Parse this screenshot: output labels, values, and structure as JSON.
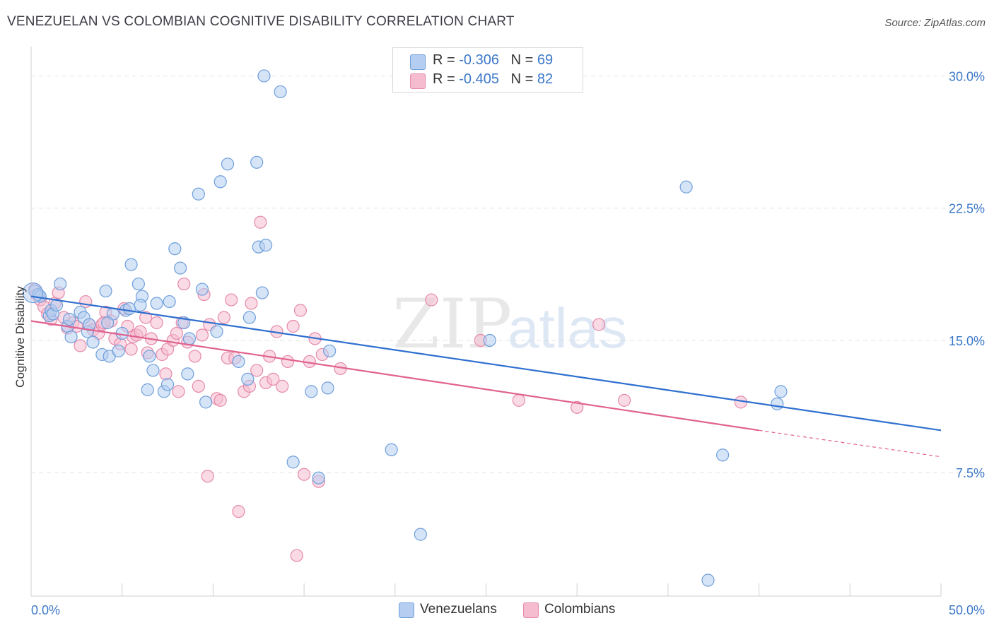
{
  "title": "VENEZUELAN VS COLOMBIAN COGNITIVE DISABILITY CORRELATION CHART",
  "source": "Source: ZipAtlas.com",
  "legend": {
    "rows": [
      {
        "r_label": "R =",
        "r_value": "-0.306",
        "n_label": "N =",
        "n_value": "69"
      },
      {
        "r_label": "R =",
        "r_value": "-0.405",
        "n_label": "N =",
        "n_value": "82"
      }
    ]
  },
  "bottom_legend": [
    "Venezuelans",
    "Colombians"
  ],
  "colors": {
    "venezuelans_fill": "#b4cdf0",
    "venezuelans_stroke": "#6e9fdc",
    "venezuelans_line": "#2f6fcf",
    "colombians_fill": "#f5bcd0",
    "colombians_stroke": "#e58aab",
    "colombians_line": "#e0628f",
    "tick_text": "#3c78c8",
    "grid": "#e3e3e3"
  },
  "chart_data": {
    "type": "scatter",
    "ylabel": "Cognitive Disability",
    "xlim": [
      0,
      50
    ],
    "ylim": [
      0.5,
      31.5
    ],
    "x_tick_labels": [
      "0.0%",
      "50.0%"
    ],
    "y_ticks": [
      7.5,
      15.0,
      22.5,
      30.0
    ],
    "y_tick_labels": [
      "7.5%",
      "15.0%",
      "22.5%",
      "30.0%"
    ],
    "grid": true,
    "watermark": [
      "ZIP",
      "atlas"
    ],
    "series": [
      {
        "name": "Venezuelans",
        "trend": {
          "x0": 0,
          "y0": 17.5,
          "x1": 50,
          "y1": 9.9
        },
        "points": [
          [
            0.2,
            17.8
          ],
          [
            0.4,
            17.6
          ],
          [
            0.5,
            17.5
          ],
          [
            1.0,
            16.4
          ],
          [
            1.1,
            16.7
          ],
          [
            1.2,
            16.5
          ],
          [
            1.4,
            17.0
          ],
          [
            1.6,
            18.2
          ],
          [
            2.0,
            15.8
          ],
          [
            2.1,
            16.2
          ],
          [
            2.2,
            15.2
          ],
          [
            2.7,
            16.6
          ],
          [
            2.9,
            16.3
          ],
          [
            3.1,
            15.5
          ],
          [
            3.4,
            14.9
          ],
          [
            3.2,
            15.9
          ],
          [
            3.9,
            14.2
          ],
          [
            4.1,
            17.8
          ],
          [
            4.3,
            14.1
          ],
          [
            4.5,
            16.5
          ],
          [
            4.2,
            16.0
          ],
          [
            4.8,
            14.4
          ],
          [
            5.0,
            15.4
          ],
          [
            5.2,
            16.7
          ],
          [
            5.4,
            16.8
          ],
          [
            5.5,
            19.3
          ],
          [
            5.9,
            18.2
          ],
          [
            6.1,
            17.5
          ],
          [
            6.0,
            17.0
          ],
          [
            6.4,
            12.2
          ],
          [
            6.5,
            14.1
          ],
          [
            6.7,
            13.3
          ],
          [
            6.9,
            17.1
          ],
          [
            7.3,
            12.1
          ],
          [
            7.5,
            12.5
          ],
          [
            7.6,
            17.2
          ],
          [
            7.9,
            20.2
          ],
          [
            8.2,
            19.1
          ],
          [
            8.4,
            16.0
          ],
          [
            8.6,
            13.1
          ],
          [
            8.7,
            15.1
          ],
          [
            9.2,
            23.3
          ],
          [
            9.4,
            17.9
          ],
          [
            9.6,
            11.5
          ],
          [
            10.2,
            15.5
          ],
          [
            10.4,
            24.0
          ],
          [
            10.8,
            25.0
          ],
          [
            11.4,
            13.8
          ],
          [
            11.9,
            12.8
          ],
          [
            12.0,
            16.3
          ],
          [
            12.4,
            25.1
          ],
          [
            12.5,
            20.3
          ],
          [
            12.7,
            17.7
          ],
          [
            12.9,
            20.4
          ],
          [
            12.8,
            30.0
          ],
          [
            13.7,
            29.1
          ],
          [
            14.4,
            8.1
          ],
          [
            15.4,
            12.1
          ],
          [
            15.8,
            7.2
          ],
          [
            16.3,
            12.3
          ],
          [
            16.4,
            14.4
          ],
          [
            19.8,
            8.8
          ],
          [
            21.4,
            4.0
          ],
          [
            25.2,
            15.0
          ],
          [
            36.0,
            23.7
          ],
          [
            38.0,
            8.5
          ],
          [
            37.2,
            1.4
          ],
          [
            41.0,
            11.4
          ],
          [
            41.2,
            12.1
          ]
        ]
      },
      {
        "name": "Colombians",
        "trend": {
          "x0": 0,
          "y0": 16.1,
          "x1": 40,
          "y1": 9.9
        },
        "trend_dashed": {
          "x0": 40,
          "y0": 9.9,
          "x1": 50,
          "y1": 8.4
        },
        "points": [
          [
            0.2,
            17.9
          ],
          [
            0.3,
            17.6
          ],
          [
            0.5,
            17.3
          ],
          [
            0.7,
            16.9
          ],
          [
            0.9,
            16.5
          ],
          [
            1.1,
            16.2
          ],
          [
            1.3,
            17.1
          ],
          [
            1.5,
            17.7
          ],
          [
            1.8,
            16.3
          ],
          [
            2.0,
            15.7
          ],
          [
            2.3,
            16.0
          ],
          [
            2.5,
            15.8
          ],
          [
            2.7,
            14.7
          ],
          [
            3.0,
            17.2
          ],
          [
            3.2,
            15.9
          ],
          [
            3.4,
            15.6
          ],
          [
            3.7,
            15.4
          ],
          [
            3.9,
            15.9
          ],
          [
            4.1,
            16.6
          ],
          [
            4.4,
            16.1
          ],
          [
            4.6,
            15.1
          ],
          [
            4.9,
            14.8
          ],
          [
            5.1,
            16.8
          ],
          [
            5.3,
            15.8
          ],
          [
            5.5,
            14.5
          ],
          [
            5.6,
            15.2
          ],
          [
            5.8,
            15.3
          ],
          [
            6.0,
            15.5
          ],
          [
            6.3,
            16.3
          ],
          [
            6.4,
            14.3
          ],
          [
            6.6,
            15.1
          ],
          [
            6.9,
            16.0
          ],
          [
            7.2,
            14.2
          ],
          [
            7.4,
            13.1
          ],
          [
            7.5,
            14.5
          ],
          [
            7.8,
            15.0
          ],
          [
            8.0,
            15.4
          ],
          [
            8.1,
            12.1
          ],
          [
            8.3,
            16.0
          ],
          [
            8.4,
            18.2
          ],
          [
            8.6,
            14.9
          ],
          [
            9.0,
            14.1
          ],
          [
            9.2,
            12.4
          ],
          [
            9.5,
            17.6
          ],
          [
            9.7,
            7.3
          ],
          [
            9.8,
            15.9
          ],
          [
            10.2,
            11.7
          ],
          [
            10.4,
            11.6
          ],
          [
            10.6,
            16.3
          ],
          [
            10.8,
            14.0
          ],
          [
            11.0,
            17.3
          ],
          [
            11.2,
            14.0
          ],
          [
            11.4,
            5.3
          ],
          [
            11.7,
            12.1
          ],
          [
            12.0,
            12.4
          ],
          [
            12.1,
            17.1
          ],
          [
            12.4,
            13.3
          ],
          [
            12.6,
            21.7
          ],
          [
            12.9,
            12.6
          ],
          [
            13.1,
            14.1
          ],
          [
            13.3,
            12.8
          ],
          [
            13.5,
            15.5
          ],
          [
            13.8,
            12.4
          ],
          [
            14.1,
            13.8
          ],
          [
            14.4,
            15.8
          ],
          [
            14.6,
            2.8
          ],
          [
            14.8,
            16.7
          ],
          [
            15.0,
            7.4
          ],
          [
            15.3,
            13.8
          ],
          [
            15.6,
            15.1
          ],
          [
            15.8,
            7.0
          ],
          [
            16.0,
            14.2
          ],
          [
            17.0,
            13.4
          ],
          [
            22.0,
            17.3
          ],
          [
            24.7,
            15.0
          ],
          [
            26.8,
            11.6
          ],
          [
            30.0,
            11.2
          ],
          [
            31.2,
            15.9
          ],
          [
            32.6,
            11.6
          ],
          [
            39.0,
            11.5
          ],
          [
            9.4,
            15.3
          ],
          [
            4.0,
            16.0
          ]
        ]
      }
    ]
  }
}
